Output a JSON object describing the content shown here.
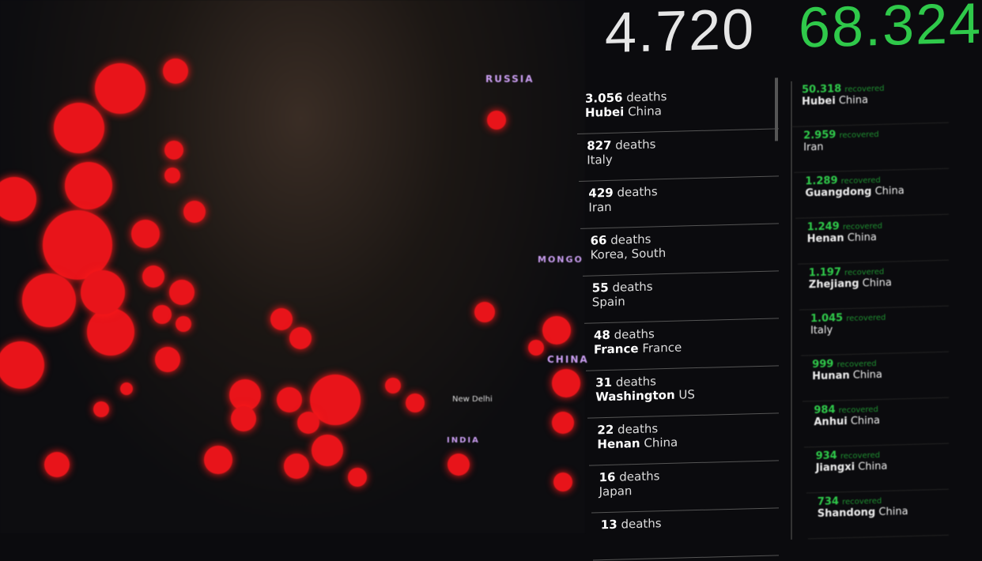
{
  "map": {
    "labels": [
      "RUSSIA",
      "MONGO",
      "CHINA",
      "INDIA"
    ],
    "cities": [
      "New Delhi"
    ],
    "dot_color": "#e8141a"
  },
  "totals": {
    "deaths": "4.720",
    "recovered": "68.324",
    "deaths_color": "#e6e6e6",
    "recovered_color": "#2fc94a"
  },
  "deaths": [
    {
      "count": "3.056",
      "unit": "deaths",
      "region": "Hubei",
      "country": "China"
    },
    {
      "count": "827",
      "unit": "deaths",
      "region": "",
      "country": "Italy"
    },
    {
      "count": "429",
      "unit": "deaths",
      "region": "",
      "country": "Iran"
    },
    {
      "count": "66",
      "unit": "deaths",
      "region": "",
      "country": "Korea, South"
    },
    {
      "count": "55",
      "unit": "deaths",
      "region": "",
      "country": "Spain"
    },
    {
      "count": "48",
      "unit": "deaths",
      "region": "France",
      "country": "France"
    },
    {
      "count": "31",
      "unit": "deaths",
      "region": "Washington",
      "country": "US"
    },
    {
      "count": "22",
      "unit": "deaths",
      "region": "Henan",
      "country": "China"
    },
    {
      "count": "16",
      "unit": "deaths",
      "region": "",
      "country": "Japan"
    },
    {
      "count": "13",
      "unit": "deaths",
      "region": "",
      "country": ""
    }
  ],
  "recovered": [
    {
      "count": "50.318",
      "unit": "recovered",
      "region": "Hubei",
      "country": "China"
    },
    {
      "count": "2.959",
      "unit": "recovered",
      "region": "",
      "country": "Iran"
    },
    {
      "count": "1.289",
      "unit": "recovered",
      "region": "Guangdong",
      "country": "China"
    },
    {
      "count": "1.249",
      "unit": "recovered",
      "region": "Henan",
      "country": "China"
    },
    {
      "count": "1.197",
      "unit": "recovered",
      "region": "Zhejiang",
      "country": "China"
    },
    {
      "count": "1.045",
      "unit": "recovered",
      "region": "",
      "country": "Italy"
    },
    {
      "count": "999",
      "unit": "recovered",
      "region": "Hunan",
      "country": "China"
    },
    {
      "count": "984",
      "unit": "recovered",
      "region": "Anhui",
      "country": "China"
    },
    {
      "count": "934",
      "unit": "recovered",
      "region": "Jiangxi",
      "country": "China"
    },
    {
      "count": "734",
      "unit": "recovered",
      "region": "Shandong",
      "country": "China"
    }
  ]
}
